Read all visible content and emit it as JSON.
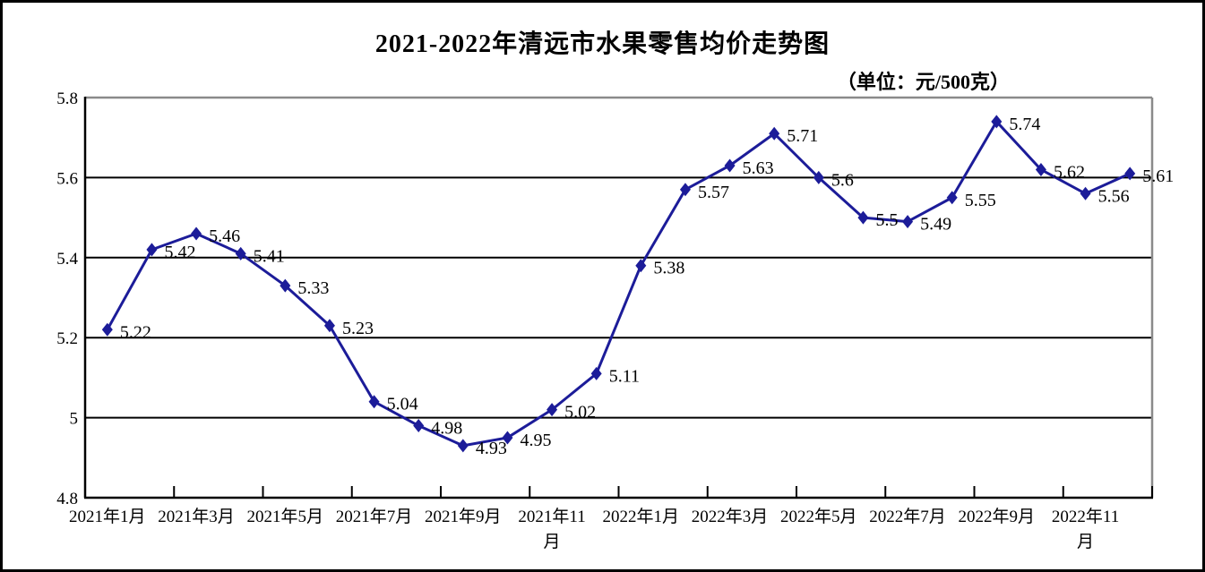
{
  "page": {
    "title": "2021-2022年清远市水果零售均价走势图",
    "unit_label": "（单位：元/500克）"
  },
  "chart_data": {
    "type": "line",
    "title": "2021-2022年清远市水果零售均价走势图",
    "unit_label": "（单位：元/500克）",
    "values": [
      5.22,
      5.42,
      5.46,
      5.41,
      5.33,
      5.23,
      5.04,
      4.98,
      4.93,
      4.95,
      5.02,
      5.11,
      5.38,
      5.57,
      5.63,
      5.71,
      5.6,
      5.5,
      5.49,
      5.55,
      5.74,
      5.62,
      5.56,
      5.61
    ],
    "point_labels": [
      "5.22",
      "5.42",
      "5.46",
      "5.41",
      "5.33",
      "5.23",
      "5.04",
      "4.98",
      "4.93",
      "4.95",
      "5.02",
      "5.11",
      "5.38",
      "5.57",
      "5.63",
      "5.71",
      "5.6",
      "5.5",
      "5.49",
      "5.55",
      "5.74",
      "5.62",
      "5.56",
      "5.61"
    ],
    "x_tick_labels": [
      [
        "2021年1月"
      ],
      [
        "2021年3月"
      ],
      [
        "2021年5月"
      ],
      [
        "2021年7月"
      ],
      [
        "2021年9月"
      ],
      [
        "2021年11",
        "月"
      ],
      [
        "2022年1月"
      ],
      [
        "2022年3月"
      ],
      [
        "2022年5月"
      ],
      [
        "2022年7月"
      ],
      [
        "2022年9月"
      ],
      [
        "2022年11",
        "月"
      ]
    ],
    "y_tick_labels": [
      "5.8",
      "5.6",
      "5.4",
      "5.2",
      "5",
      "4.8"
    ],
    "ylim": [
      4.8,
      5.8
    ],
    "grid": true,
    "legend": "none",
    "colors": {
      "line": "#1C1C99",
      "marker": "#1C1C99",
      "gridline": "#000000",
      "axis": "#000000",
      "plot_border": "#8A8A8A",
      "text": "#000000"
    }
  }
}
